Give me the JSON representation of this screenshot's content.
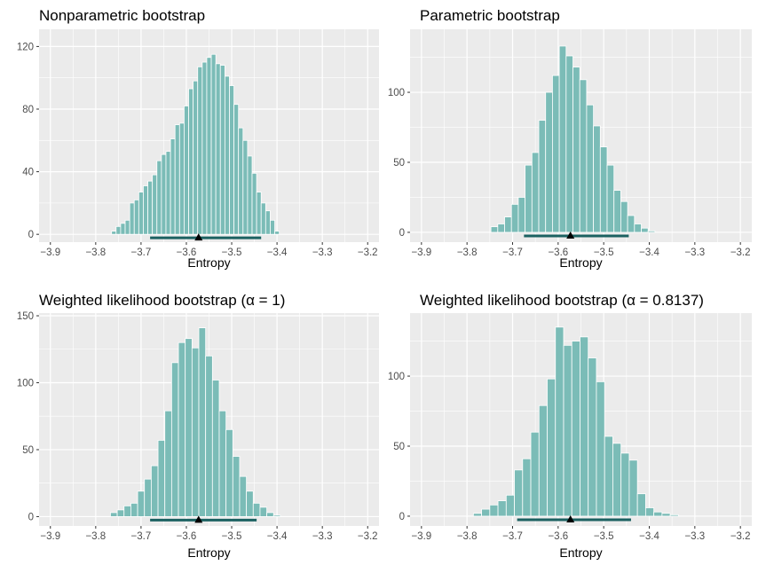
{
  "colors": {
    "panel": "#ebebeb",
    "grid": "#ffffff",
    "bar": "#7bbcb7",
    "interval": "#1b6161",
    "point": "#000000"
  },
  "chart_data": [
    {
      "type": "bar",
      "title": "Nonparametric bootstrap",
      "xlabel": "Entropy",
      "ylabel": "",
      "xlim": [
        -3.925,
        -3.175
      ],
      "ylim": [
        -5,
        131
      ],
      "xticks": [
        -3.9,
        -3.8,
        -3.7,
        -3.6,
        -3.5,
        -3.4,
        -3.3,
        -3.2
      ],
      "xtick_labels": [
        "−3.9",
        "−3.8",
        "−3.7",
        "−3.6",
        "−3.5",
        "−3.4",
        "−3.3",
        "−3.2"
      ],
      "yticks": [
        0,
        40,
        80,
        120
      ],
      "ytick_labels": [
        "0",
        "40",
        "80",
        "120"
      ],
      "bin_width": 0.01,
      "bin_start": [
        -3.765,
        -3.755,
        -3.745,
        -3.735,
        -3.725,
        -3.715,
        -3.705,
        -3.695,
        -3.685,
        -3.675,
        -3.665,
        -3.655,
        -3.645,
        -3.635,
        -3.625,
        -3.615,
        -3.605,
        -3.595,
        -3.585,
        -3.575,
        -3.565,
        -3.555,
        -3.545,
        -3.535,
        -3.525,
        -3.515,
        -3.505,
        -3.495,
        -3.485,
        -3.475,
        -3.465,
        -3.455,
        -3.445,
        -3.435,
        -3.425,
        -3.415,
        -3.405
      ],
      "values": [
        2,
        5,
        7,
        9,
        20,
        22,
        27,
        31,
        34,
        38,
        47,
        51,
        53,
        61,
        70,
        71,
        82,
        93,
        98,
        107,
        110,
        113,
        115,
        109,
        108,
        101,
        95,
        83,
        68,
        60,
        50,
        39,
        27,
        20,
        15,
        9,
        2
      ],
      "interval": [
        -3.68,
        -3.435
      ],
      "point": -3.573
    },
    {
      "type": "bar",
      "title": "Parametric bootstrap",
      "xlabel": "Entropy",
      "ylabel": "",
      "xlim": [
        -3.925,
        -3.175
      ],
      "ylim": [
        -7,
        145
      ],
      "xticks": [
        -3.9,
        -3.8,
        -3.7,
        -3.6,
        -3.5,
        -3.4,
        -3.3,
        -3.2
      ],
      "xtick_labels": [
        "−3.9",
        "−3.8",
        "−3.7",
        "−3.6",
        "−3.5",
        "−3.4",
        "−3.3",
        "−3.2"
      ],
      "yticks": [
        0,
        50,
        100
      ],
      "ytick_labels": [
        "0",
        "50",
        "100"
      ],
      "bin_width": 0.015,
      "bin_start": [
        -3.7475,
        -3.7325,
        -3.7175,
        -3.7025,
        -3.6875,
        -3.6725,
        -3.6575,
        -3.6425,
        -3.6275,
        -3.6125,
        -3.5975,
        -3.5825,
        -3.5675,
        -3.5525,
        -3.5375,
        -3.5225,
        -3.5075,
        -3.4925,
        -3.4775,
        -3.4625,
        -3.4475,
        -3.4325,
        -3.4175,
        -3.4025
      ],
      "values": [
        4,
        6,
        11,
        20,
        25,
        48,
        57,
        80,
        100,
        112,
        133,
        126,
        118,
        109,
        91,
        76,
        61,
        48,
        30,
        22,
        12,
        6,
        3,
        1
      ],
      "interval": [
        -3.675,
        -3.445
      ],
      "point": -3.573
    },
    {
      "type": "bar",
      "title": "Weighted likelihood bootstrap (α = 1)",
      "xlabel": "Entropy",
      "ylabel": "",
      "xlim": [
        -3.925,
        -3.175
      ],
      "ylim": [
        -7,
        152
      ],
      "xticks": [
        -3.9,
        -3.8,
        -3.7,
        -3.6,
        -3.5,
        -3.4,
        -3.3,
        -3.2
      ],
      "xtick_labels": [
        "−3.9",
        "−3.8",
        "−3.7",
        "−3.6",
        "−3.5",
        "−3.4",
        "−3.3",
        "−3.2"
      ],
      "yticks": [
        0,
        50,
        100,
        150
      ],
      "ytick_labels": [
        "0",
        "50",
        "100",
        "150"
      ],
      "bin_width": 0.015,
      "bin_start": [
        -3.7675,
        -3.7525,
        -3.7375,
        -3.7225,
        -3.7075,
        -3.6925,
        -3.6775,
        -3.6625,
        -3.6475,
        -3.6325,
        -3.6175,
        -3.6025,
        -3.5875,
        -3.5725,
        -3.5575,
        -3.5425,
        -3.5275,
        -3.5125,
        -3.4975,
        -3.4825,
        -3.4675,
        -3.4525,
        -3.4375,
        -3.4225,
        -3.4075
      ],
      "values": [
        3,
        5,
        8,
        10,
        19,
        28,
        38,
        57,
        79,
        115,
        130,
        133,
        126,
        141,
        120,
        102,
        79,
        65,
        45,
        30,
        19,
        10,
        7,
        3,
        1
      ],
      "interval": [
        -3.68,
        -3.445
      ],
      "point": -3.573
    },
    {
      "type": "bar",
      "title": "Weighted likelihood bootstrap (α = 0.8137)",
      "xlabel": "Entropy",
      "ylabel": "",
      "xlim": [
        -3.925,
        -3.175
      ],
      "ylim": [
        -7,
        145
      ],
      "xticks": [
        -3.9,
        -3.8,
        -3.7,
        -3.6,
        -3.5,
        -3.4,
        -3.3,
        -3.2
      ],
      "xtick_labels": [
        "−3.9",
        "−3.8",
        "−3.7",
        "−3.6",
        "−3.5",
        "−3.4",
        "−3.3",
        "−3.2"
      ],
      "yticks": [
        0,
        50,
        100
      ],
      "ytick_labels": [
        "0",
        "50",
        "100"
      ],
      "bin_width": 0.018,
      "bin_start": [
        -3.786,
        -3.768,
        -3.75,
        -3.732,
        -3.714,
        -3.696,
        -3.678,
        -3.66,
        -3.642,
        -3.624,
        -3.606,
        -3.588,
        -3.57,
        -3.552,
        -3.534,
        -3.516,
        -3.498,
        -3.48,
        -3.462,
        -3.444,
        -3.426,
        -3.408,
        -3.39,
        -3.372,
        -3.354
      ],
      "values": [
        2,
        5,
        8,
        11,
        15,
        33,
        41,
        60,
        79,
        98,
        135,
        122,
        125,
        128,
        113,
        96,
        57,
        52,
        45,
        40,
        16,
        6,
        3,
        2,
        1
      ],
      "interval": [
        -3.69,
        -3.44
      ],
      "point": -3.573
    }
  ]
}
